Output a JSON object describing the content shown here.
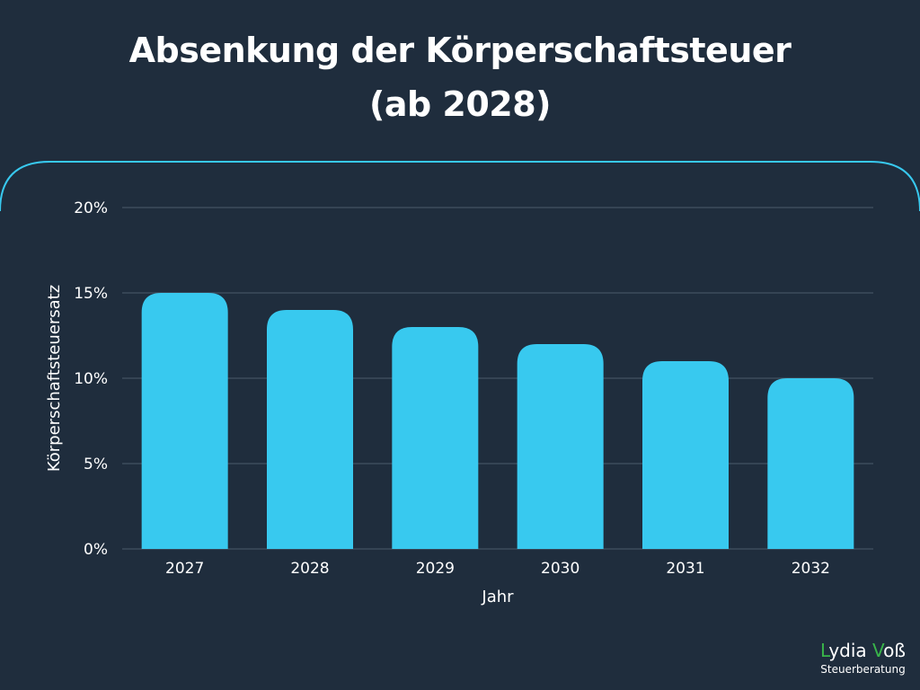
{
  "colors": {
    "background": "#1f2d3d",
    "bar": "#38c9ef",
    "panel_border": "#38c9ef",
    "grid": "#4b5b6c",
    "text": "#ffffff",
    "logo_accent": "#39b54a"
  },
  "chart_data": {
    "type": "bar",
    "title": "Absenkung der Körperschaftsteuer",
    "subtitle": "(ab 2028)",
    "xlabel": "Jahr",
    "ylabel": "Körperschaftsteuersatz",
    "categories": [
      "2027",
      "2028",
      "2029",
      "2030",
      "2031",
      "2032"
    ],
    "values": [
      15,
      14,
      13,
      12,
      11,
      10
    ],
    "ylim": [
      0,
      20
    ],
    "yticks": [
      0,
      5,
      10,
      15,
      20
    ],
    "ytick_labels": [
      "0%",
      "5%",
      "10%",
      "15%",
      "20%"
    ],
    "grid": true,
    "legend": "none"
  },
  "logo": {
    "first_initial": "L",
    "first_rest": "ydia",
    "last_initial": "V",
    "last_rest": "oß",
    "subtitle": "Steuerberatung"
  }
}
